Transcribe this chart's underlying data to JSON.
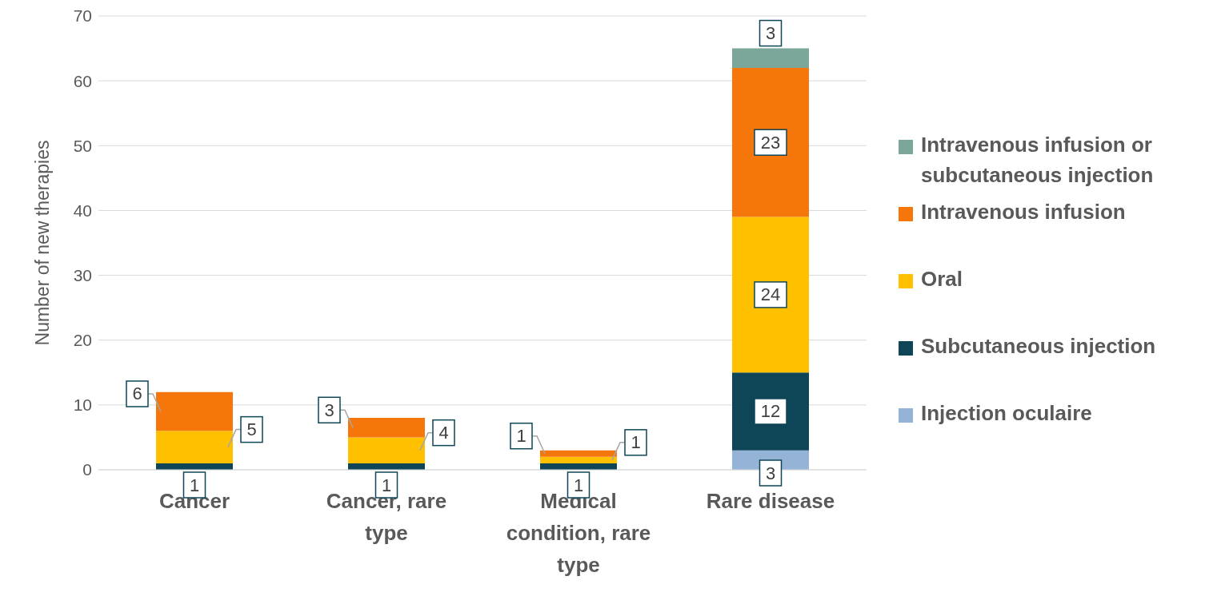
{
  "chart_data": {
    "type": "bar",
    "stacked": true,
    "ylabel": "Number of new therapies",
    "categories": [
      "Cancer",
      "Cancer, rare type",
      "Medical condition, rare type",
      "Rare disease"
    ],
    "ylim": [
      0,
      70
    ],
    "yticks": [
      0,
      10,
      20,
      30,
      40,
      50,
      60,
      70
    ],
    "grid": "y",
    "legend": "right",
    "series": [
      {
        "name": "Injection oculaire",
        "color": "#95b3d7",
        "values": [
          0,
          0,
          0,
          3
        ],
        "value_labels": [
          null,
          null,
          null,
          "3"
        ]
      },
      {
        "name": "Subcutaneous injection",
        "color": "#0f4657",
        "values": [
          1,
          1,
          1,
          12
        ],
        "value_labels": [
          "1",
          "1",
          "1",
          "12"
        ]
      },
      {
        "name": "Oral",
        "color": "#ffc000",
        "values": [
          5,
          4,
          1,
          24
        ],
        "value_labels": [
          "5",
          "4",
          "1",
          "24"
        ]
      },
      {
        "name": "Intravenous infusion",
        "color": "#f5760a",
        "values": [
          6,
          3,
          1,
          23
        ],
        "value_labels": [
          "6",
          "3",
          "1",
          "23"
        ]
      },
      {
        "name": "Intravenous infusion or subcutaneous injection",
        "color": "#7aa79a",
        "values": [
          0,
          0,
          0,
          3
        ],
        "value_labels": [
          null,
          null,
          null,
          "3"
        ]
      }
    ]
  }
}
